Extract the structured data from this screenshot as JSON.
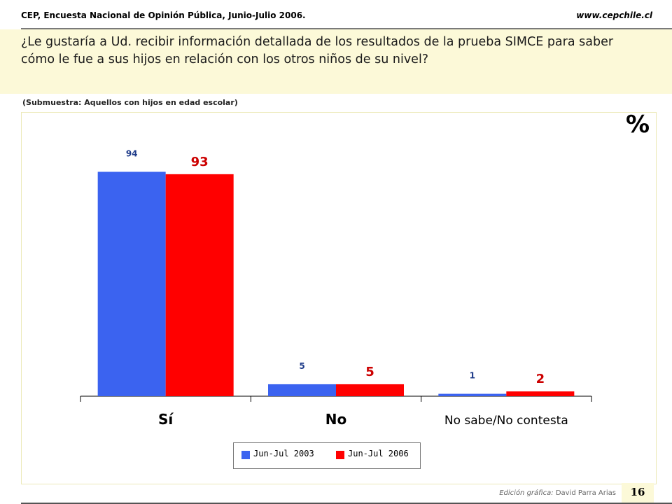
{
  "header": {
    "left": "CEP, Encuesta Nacional de Opinión Pública, Junio-Julio 2006.",
    "right": "www.cepchile.cl"
  },
  "question": "¿Le gustaría a Ud. recibir información detallada de los resultados de la prueba SIMCE para saber cómo le fue a sus hijos en relación con los otros niños de su nivel?",
  "subsample": "(Submuestra: Aquellos con hijos en edad escolar)",
  "unit": "%",
  "colors": {
    "series1": "#3b63f0",
    "series2": "#ff0000",
    "question_bg": "#fcf9d8"
  },
  "chart_data": {
    "type": "bar",
    "categories": [
      "Sí",
      "No",
      "No sabe/No contesta"
    ],
    "series": [
      {
        "name": "Jun-Jul 2003",
        "values": [
          94,
          5,
          1
        ]
      },
      {
        "name": "Jun-Jul 2006",
        "values": [
          93,
          5,
          2
        ]
      }
    ],
    "ylim": [
      0,
      100
    ],
    "legend_position": "bottom",
    "grid": false
  },
  "footer": {
    "credit_prefix": "Edición gráfica:",
    "credit_name": "David Parra Arias"
  },
  "page_number": "16"
}
